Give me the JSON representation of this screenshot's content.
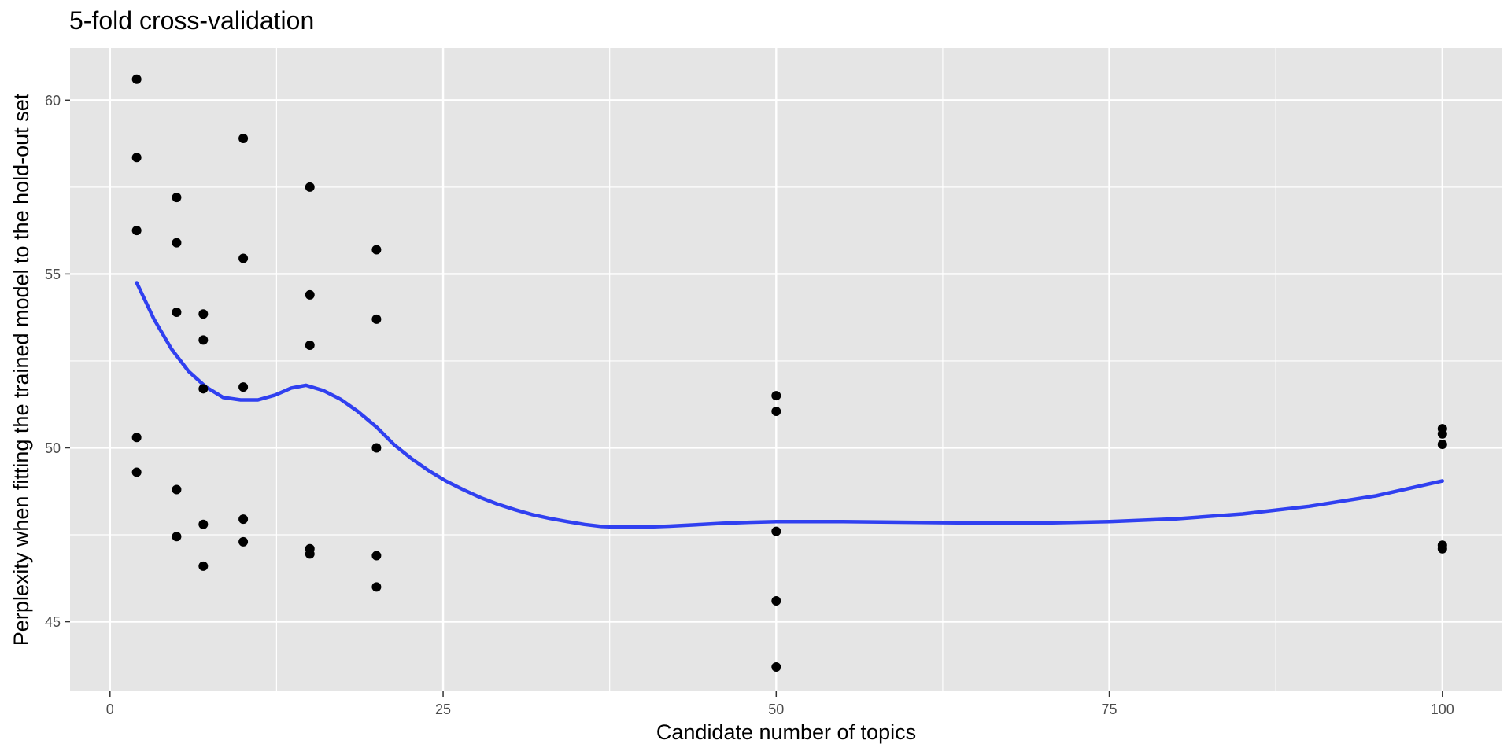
{
  "chart_data": {
    "type": "scatter",
    "title": "5-fold cross-validation",
    "xlabel": "Candidate number of topics",
    "ylabel": "Perplexity when fitting the trained model to the hold-out set",
    "xlim": [
      -3,
      104.5
    ],
    "ylim": [
      43.0,
      61.5
    ],
    "x_ticks": [
      0,
      25,
      50,
      75,
      100
    ],
    "y_ticks": [
      45,
      50,
      55,
      60
    ],
    "grid": true,
    "legend": "none",
    "colors": {
      "panel": "#e5e5e5",
      "grid": "#ffffff",
      "points": "#000000",
      "smooth": "#3040f0"
    },
    "series": [
      {
        "kind": "points",
        "points": [
          {
            "x": 2,
            "y": 60.6
          },
          {
            "x": 2,
            "y": 58.35
          },
          {
            "x": 2,
            "y": 56.25
          },
          {
            "x": 2,
            "y": 50.3
          },
          {
            "x": 2,
            "y": 49.3
          },
          {
            "x": 5,
            "y": 57.2
          },
          {
            "x": 5,
            "y": 55.9
          },
          {
            "x": 5,
            "y": 53.9
          },
          {
            "x": 5,
            "y": 48.8
          },
          {
            "x": 5,
            "y": 47.45
          },
          {
            "x": 7,
            "y": 53.85
          },
          {
            "x": 7,
            "y": 53.1
          },
          {
            "x": 7,
            "y": 51.7
          },
          {
            "x": 7,
            "y": 47.8
          },
          {
            "x": 7,
            "y": 46.6
          },
          {
            "x": 10,
            "y": 58.9
          },
          {
            "x": 10,
            "y": 55.45
          },
          {
            "x": 10,
            "y": 51.75
          },
          {
            "x": 10,
            "y": 47.95
          },
          {
            "x": 10,
            "y": 47.3
          },
          {
            "x": 15,
            "y": 57.5
          },
          {
            "x": 15,
            "y": 54.4
          },
          {
            "x": 15,
            "y": 52.95
          },
          {
            "x": 15,
            "y": 47.1
          },
          {
            "x": 15,
            "y": 46.95
          },
          {
            "x": 20,
            "y": 55.7
          },
          {
            "x": 20,
            "y": 53.7
          },
          {
            "x": 20,
            "y": 50.0
          },
          {
            "x": 20,
            "y": 46.9
          },
          {
            "x": 20,
            "y": 46.0
          },
          {
            "x": 50,
            "y": 51.5
          },
          {
            "x": 50,
            "y": 51.05
          },
          {
            "x": 50,
            "y": 47.6
          },
          {
            "x": 50,
            "y": 45.6
          },
          {
            "x": 50,
            "y": 43.7
          },
          {
            "x": 100,
            "y": 50.55
          },
          {
            "x": 100,
            "y": 50.4
          },
          {
            "x": 100,
            "y": 50.1
          },
          {
            "x": 100,
            "y": 47.2
          },
          {
            "x": 100,
            "y": 47.1
          }
        ]
      },
      {
        "kind": "smooth",
        "points": [
          {
            "x": 2,
            "y": 54.75
          },
          {
            "x": 3.3,
            "y": 53.7
          },
          {
            "x": 4.6,
            "y": 52.85
          },
          {
            "x": 5.9,
            "y": 52.2
          },
          {
            "x": 7.2,
            "y": 51.75
          },
          {
            "x": 8.5,
            "y": 51.45
          },
          {
            "x": 9.8,
            "y": 51.38
          },
          {
            "x": 11.1,
            "y": 51.38
          },
          {
            "x": 12.4,
            "y": 51.52
          },
          {
            "x": 13.6,
            "y": 51.72
          },
          {
            "x": 14.7,
            "y": 51.8
          },
          {
            "x": 16,
            "y": 51.65
          },
          {
            "x": 17.3,
            "y": 51.4
          },
          {
            "x": 18.6,
            "y": 51.05
          },
          {
            "x": 20,
            "y": 50.6
          },
          {
            "x": 21.3,
            "y": 50.1
          },
          {
            "x": 22.6,
            "y": 49.7
          },
          {
            "x": 23.9,
            "y": 49.35
          },
          {
            "x": 25.2,
            "y": 49.05
          },
          {
            "x": 26.5,
            "y": 48.8
          },
          {
            "x": 27.8,
            "y": 48.57
          },
          {
            "x": 29.1,
            "y": 48.38
          },
          {
            "x": 30.4,
            "y": 48.22
          },
          {
            "x": 31.7,
            "y": 48.08
          },
          {
            "x": 33,
            "y": 47.97
          },
          {
            "x": 34.3,
            "y": 47.88
          },
          {
            "x": 35.6,
            "y": 47.8
          },
          {
            "x": 36.9,
            "y": 47.74
          },
          {
            "x": 38.2,
            "y": 47.72
          },
          {
            "x": 40,
            "y": 47.72
          },
          {
            "x": 42,
            "y": 47.75
          },
          {
            "x": 44,
            "y": 47.79
          },
          {
            "x": 46,
            "y": 47.83
          },
          {
            "x": 48,
            "y": 47.86
          },
          {
            "x": 50,
            "y": 47.88
          },
          {
            "x": 55,
            "y": 47.88
          },
          {
            "x": 60,
            "y": 47.86
          },
          {
            "x": 65,
            "y": 47.84
          },
          {
            "x": 70,
            "y": 47.84
          },
          {
            "x": 75,
            "y": 47.88
          },
          {
            "x": 80,
            "y": 47.96
          },
          {
            "x": 85,
            "y": 48.1
          },
          {
            "x": 90,
            "y": 48.32
          },
          {
            "x": 95,
            "y": 48.62
          },
          {
            "x": 100,
            "y": 49.05
          }
        ]
      }
    ]
  }
}
